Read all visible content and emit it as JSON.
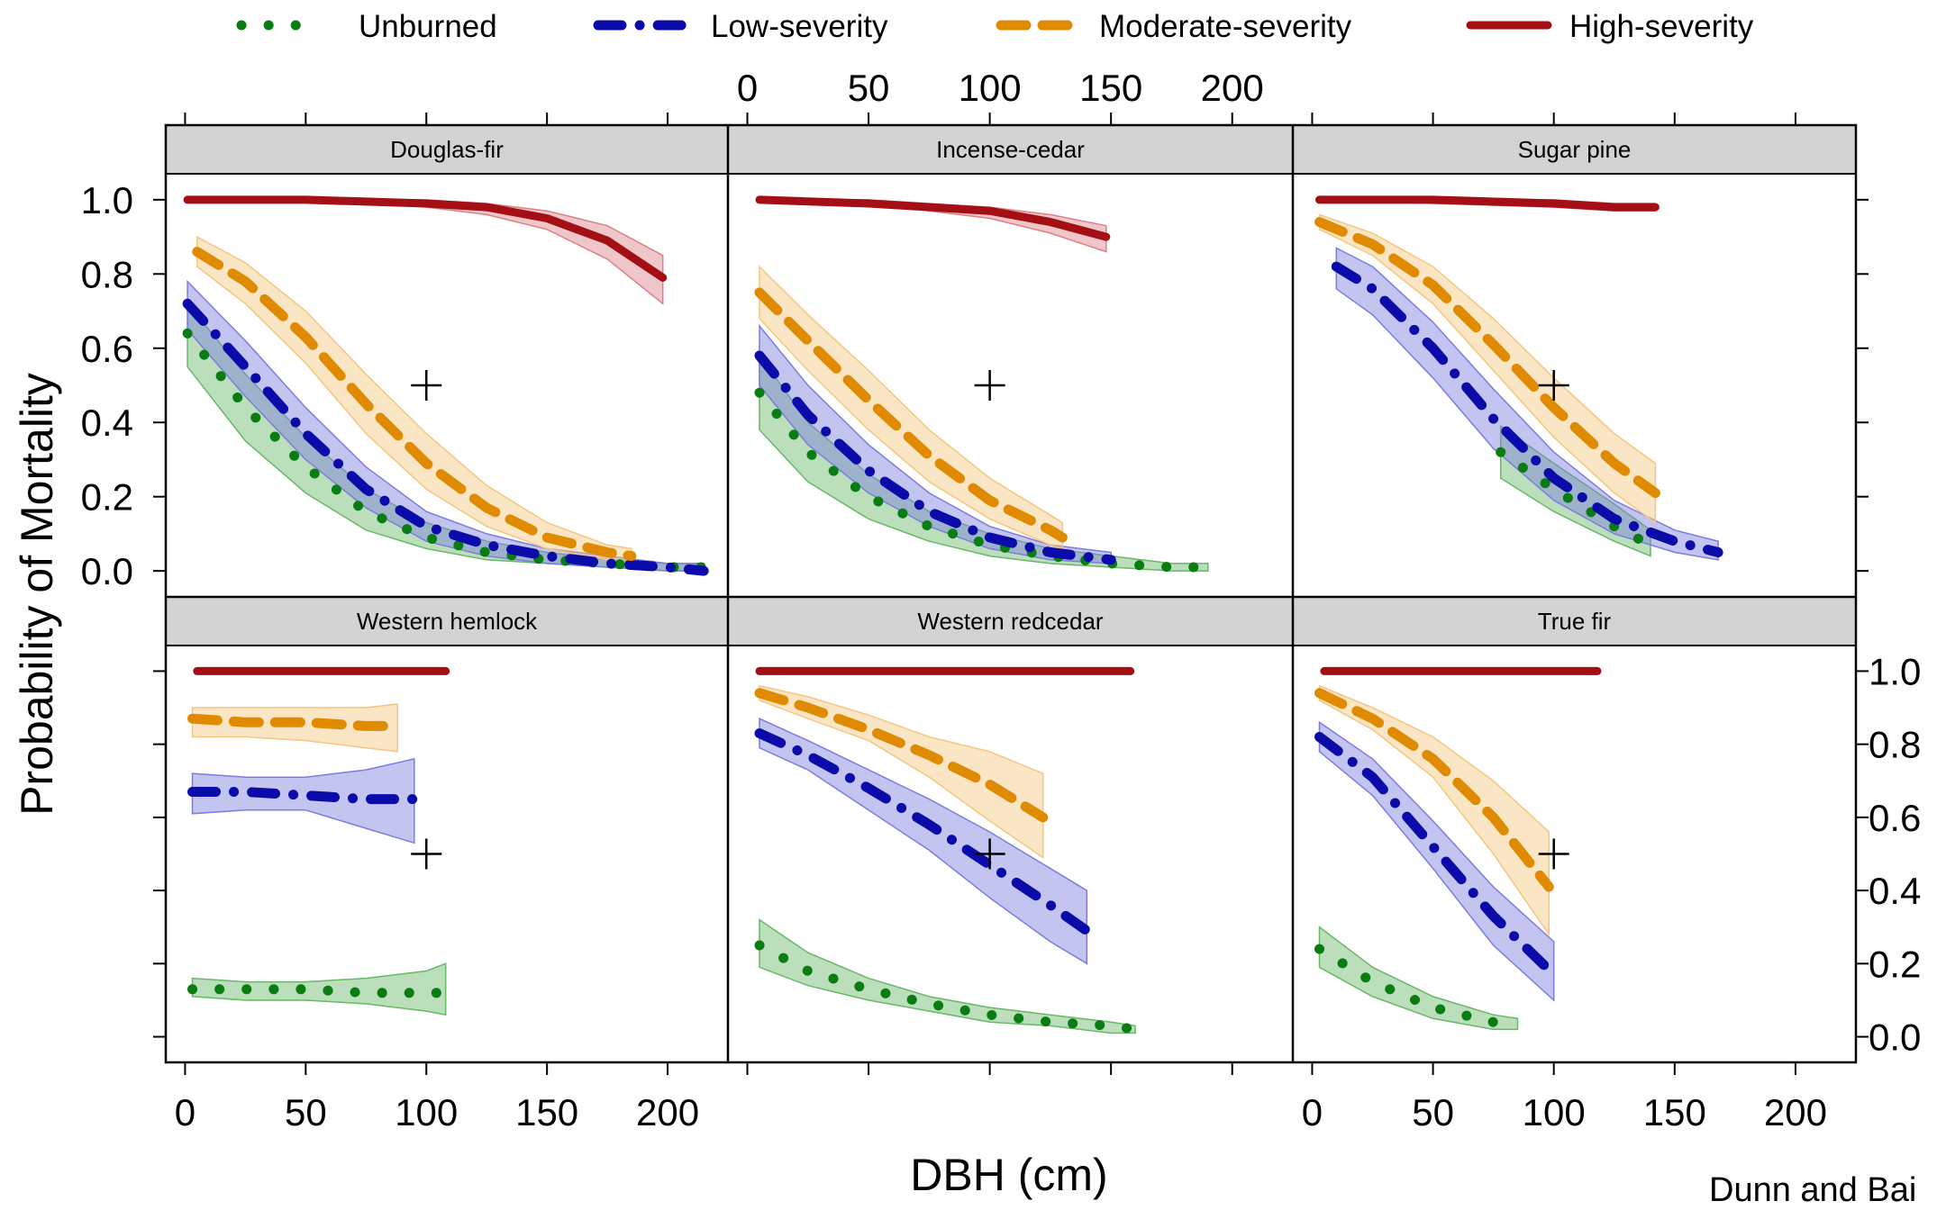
{
  "attribution": "Dunn and Bai",
  "chart_data": {
    "type": "line",
    "grid": false,
    "legend_position": "top",
    "x_label": "DBH (cm)",
    "y_label": "Probability of Mortality",
    "x_range": [
      -8,
      225
    ],
    "y_range": [
      -0.07,
      1.07
    ],
    "x_ticks": [
      0,
      50,
      100,
      150,
      200
    ],
    "x_tick_labels": [
      "0",
      "50",
      "100",
      "150",
      "200"
    ],
    "y_ticks": [
      0,
      0.2,
      0.4,
      0.6,
      0.8,
      1.0
    ],
    "y_tick_labels": [
      "0.0",
      "0.2",
      "0.4",
      "0.6",
      "0.8",
      "1.0"
    ],
    "reference_marker": {
      "x": 100,
      "y": 0.5,
      "symbol": "+"
    },
    "series_styles": [
      {
        "key": "unburned",
        "name": "Unburned",
        "color": "#0a7d12",
        "band_color": "#68b868",
        "style": "dotted"
      },
      {
        "key": "low",
        "name": "Low-severity",
        "color": "#0a0ba8",
        "band_color": "#7c7ce0",
        "style": "dash-dot"
      },
      {
        "key": "moderate",
        "name": "Moderate-severity",
        "color": "#e08a00",
        "band_color": "#f4c67e",
        "style": "dashed"
      },
      {
        "key": "high",
        "name": "High-severity",
        "color": "#a30f14",
        "band_color": "#dc8088",
        "style": "solid"
      }
    ],
    "panels": [
      {
        "title": "Douglas-fir",
        "series": [
          {
            "key": "unburned",
            "x": [
              1,
              25,
              50,
              75,
              100,
              125,
              150,
              175,
              200,
              215
            ],
            "y": [
              0.64,
              0.44,
              0.28,
              0.16,
              0.09,
              0.05,
              0.03,
              0.02,
              0.01,
              0.01
            ],
            "lower": [
              0.55,
              0.35,
              0.21,
              0.11,
              0.06,
              0.03,
              0.02,
              0.01,
              0.0,
              0.0
            ],
            "upper": [
              0.72,
              0.53,
              0.36,
              0.22,
              0.13,
              0.08,
              0.05,
              0.03,
              0.02,
              0.02
            ]
          },
          {
            "key": "low",
            "x": [
              1,
              25,
              50,
              75,
              100,
              125,
              150,
              175,
              200,
              215
            ],
            "y": [
              0.72,
              0.55,
              0.37,
              0.22,
              0.12,
              0.07,
              0.04,
              0.02,
              0.01,
              0.0
            ],
            "lower": [
              0.65,
              0.47,
              0.3,
              0.17,
              0.08,
              0.04,
              0.02,
              0.01,
              0.0,
              0.0
            ],
            "upper": [
              0.78,
              0.62,
              0.44,
              0.28,
              0.16,
              0.1,
              0.06,
              0.04,
              0.02,
              0.02
            ]
          },
          {
            "key": "moderate",
            "x": [
              5,
              25,
              50,
              75,
              100,
              125,
              150,
              175,
              185
            ],
            "y": [
              0.86,
              0.78,
              0.63,
              0.45,
              0.29,
              0.17,
              0.09,
              0.05,
              0.04
            ],
            "lower": [
              0.82,
              0.72,
              0.56,
              0.37,
              0.22,
              0.12,
              0.06,
              0.03,
              0.02
            ],
            "upper": [
              0.9,
              0.83,
              0.7,
              0.53,
              0.37,
              0.23,
              0.13,
              0.07,
              0.06
            ]
          },
          {
            "key": "high",
            "x": [
              1,
              50,
              100,
              125,
              150,
              175,
              198
            ],
            "y": [
              1.0,
              1.0,
              0.99,
              0.98,
              0.95,
              0.89,
              0.79
            ],
            "lower": [
              1.0,
              1.0,
              0.98,
              0.96,
              0.92,
              0.84,
              0.72
            ],
            "upper": [
              1.0,
              1.0,
              1.0,
              0.99,
              0.97,
              0.93,
              0.85
            ]
          }
        ]
      },
      {
        "title": "Incense-cedar",
        "series": [
          {
            "key": "unburned",
            "x": [
              5,
              25,
              50,
              75,
              100,
              125,
              150,
              175,
              190
            ],
            "y": [
              0.48,
              0.32,
              0.2,
              0.12,
              0.07,
              0.04,
              0.02,
              0.01,
              0.01
            ],
            "lower": [
              0.38,
              0.24,
              0.14,
              0.08,
              0.04,
              0.02,
              0.01,
              0.0,
              0.0
            ],
            "upper": [
              0.58,
              0.4,
              0.26,
              0.16,
              0.1,
              0.06,
              0.04,
              0.02,
              0.02
            ]
          },
          {
            "key": "low",
            "x": [
              5,
              25,
              50,
              75,
              100,
              125,
              150
            ],
            "y": [
              0.58,
              0.42,
              0.27,
              0.16,
              0.09,
              0.05,
              0.03
            ],
            "lower": [
              0.5,
              0.34,
              0.21,
              0.12,
              0.06,
              0.03,
              0.02
            ],
            "upper": [
              0.66,
              0.5,
              0.34,
              0.21,
              0.12,
              0.07,
              0.05
            ]
          },
          {
            "key": "moderate",
            "x": [
              5,
              25,
              50,
              75,
              100,
              125,
              130
            ],
            "y": [
              0.75,
              0.62,
              0.46,
              0.31,
              0.19,
              0.11,
              0.09
            ],
            "lower": [
              0.68,
              0.54,
              0.38,
              0.24,
              0.14,
              0.07,
              0.06
            ],
            "upper": [
              0.82,
              0.69,
              0.54,
              0.38,
              0.25,
              0.15,
              0.13
            ]
          },
          {
            "key": "high",
            "x": [
              5,
              50,
              100,
              125,
              148
            ],
            "y": [
              1.0,
              0.99,
              0.97,
              0.94,
              0.9
            ],
            "lower": [
              1.0,
              0.99,
              0.95,
              0.91,
              0.86
            ],
            "upper": [
              1.0,
              1.0,
              0.98,
              0.96,
              0.93
            ]
          }
        ]
      },
      {
        "title": "Sugar pine",
        "series": [
          {
            "key": "unburned",
            "x": [
              78,
              100,
              125,
              140
            ],
            "y": [
              0.32,
              0.22,
              0.12,
              0.07
            ],
            "lower": [
              0.25,
              0.16,
              0.08,
              0.04
            ],
            "upper": [
              0.39,
              0.29,
              0.18,
              0.11
            ]
          },
          {
            "key": "low",
            "x": [
              10,
              25,
              50,
              75,
              100,
              125,
              150,
              168
            ],
            "y": [
              0.82,
              0.76,
              0.6,
              0.41,
              0.25,
              0.14,
              0.08,
              0.05
            ],
            "lower": [
              0.76,
              0.69,
              0.52,
              0.33,
              0.19,
              0.1,
              0.05,
              0.03
            ],
            "upper": [
              0.87,
              0.82,
              0.67,
              0.49,
              0.32,
              0.19,
              0.11,
              0.08
            ]
          },
          {
            "key": "moderate",
            "x": [
              3,
              25,
              50,
              75,
              100,
              125,
              142
            ],
            "y": [
              0.94,
              0.88,
              0.77,
              0.61,
              0.44,
              0.29,
              0.21
            ],
            "lower": [
              0.92,
              0.85,
              0.72,
              0.54,
              0.36,
              0.21,
              0.13
            ],
            "upper": [
              0.96,
              0.91,
              0.82,
              0.68,
              0.52,
              0.37,
              0.29
            ]
          },
          {
            "key": "high",
            "x": [
              3,
              50,
              100,
              125,
              142
            ],
            "y": [
              1.0,
              1.0,
              0.99,
              0.98,
              0.98
            ],
            "lower": [
              1.0,
              0.99,
              0.98,
              0.97,
              0.97
            ],
            "upper": [
              1.0,
              1.0,
              1.0,
              0.99,
              0.99
            ]
          }
        ]
      },
      {
        "title": "Western hemlock",
        "series": [
          {
            "key": "unburned",
            "x": [
              3,
              25,
              50,
              75,
              100,
              108
            ],
            "y": [
              0.13,
              0.13,
              0.13,
              0.12,
              0.12,
              0.12
            ],
            "lower": [
              0.11,
              0.1,
              0.1,
              0.09,
              0.07,
              0.06
            ],
            "upper": [
              0.16,
              0.15,
              0.15,
              0.16,
              0.18,
              0.2
            ]
          },
          {
            "key": "low",
            "x": [
              3,
              25,
              50,
              75,
              95
            ],
            "y": [
              0.67,
              0.67,
              0.66,
              0.65,
              0.65
            ],
            "lower": [
              0.61,
              0.62,
              0.62,
              0.57,
              0.53
            ],
            "upper": [
              0.72,
              0.71,
              0.71,
              0.73,
              0.76
            ]
          },
          {
            "key": "moderate",
            "x": [
              3,
              25,
              50,
              75,
              88
            ],
            "y": [
              0.87,
              0.86,
              0.86,
              0.85,
              0.85
            ],
            "lower": [
              0.82,
              0.82,
              0.81,
              0.79,
              0.78
            ],
            "upper": [
              0.9,
              0.9,
              0.9,
              0.9,
              0.91
            ]
          },
          {
            "key": "high",
            "x": [
              5,
              50,
              108
            ],
            "y": [
              1.0,
              1.0,
              1.0
            ],
            "lower": [
              1.0,
              1.0,
              1.0
            ],
            "upper": [
              1.0,
              1.0,
              1.0
            ]
          }
        ]
      },
      {
        "title": "Western redcedar",
        "series": [
          {
            "key": "unburned",
            "x": [
              5,
              25,
              50,
              75,
              100,
              125,
              150,
              160
            ],
            "y": [
              0.25,
              0.18,
              0.13,
              0.09,
              0.06,
              0.04,
              0.03,
              0.02
            ],
            "lower": [
              0.19,
              0.14,
              0.1,
              0.07,
              0.04,
              0.03,
              0.01,
              0.01
            ],
            "upper": [
              0.32,
              0.23,
              0.16,
              0.11,
              0.08,
              0.06,
              0.04,
              0.03
            ]
          },
          {
            "key": "low",
            "x": [
              5,
              25,
              50,
              75,
              100,
              125,
              140
            ],
            "y": [
              0.83,
              0.77,
              0.68,
              0.58,
              0.47,
              0.36,
              0.29
            ],
            "lower": [
              0.79,
              0.73,
              0.62,
              0.51,
              0.38,
              0.26,
              0.2
            ],
            "upper": [
              0.87,
              0.81,
              0.73,
              0.65,
              0.56,
              0.46,
              0.4
            ]
          },
          {
            "key": "moderate",
            "x": [
              5,
              25,
              50,
              75,
              100,
              122
            ],
            "y": [
              0.94,
              0.9,
              0.84,
              0.77,
              0.69,
              0.6
            ],
            "lower": [
              0.92,
              0.87,
              0.81,
              0.71,
              0.59,
              0.49
            ],
            "upper": [
              0.96,
              0.93,
              0.88,
              0.82,
              0.78,
              0.72
            ]
          },
          {
            "key": "high",
            "x": [
              5,
              50,
              100,
              158
            ],
            "y": [
              1.0,
              1.0,
              1.0,
              1.0
            ],
            "lower": [
              1.0,
              1.0,
              1.0,
              1.0
            ],
            "upper": [
              1.0,
              1.0,
              1.0,
              1.0
            ]
          }
        ]
      },
      {
        "title": "True fir",
        "series": [
          {
            "key": "unburned",
            "x": [
              3,
              25,
              50,
              75,
              85
            ],
            "y": [
              0.24,
              0.15,
              0.08,
              0.04,
              0.03
            ],
            "lower": [
              0.19,
              0.11,
              0.05,
              0.02,
              0.02
            ],
            "upper": [
              0.3,
              0.19,
              0.11,
              0.06,
              0.05
            ]
          },
          {
            "key": "low",
            "x": [
              3,
              25,
              50,
              75,
              100
            ],
            "y": [
              0.82,
              0.71,
              0.52,
              0.33,
              0.17
            ],
            "lower": [
              0.78,
              0.66,
              0.46,
              0.25,
              0.1
            ],
            "upper": [
              0.86,
              0.76,
              0.59,
              0.41,
              0.26
            ]
          },
          {
            "key": "moderate",
            "x": [
              3,
              25,
              50,
              75,
              98
            ],
            "y": [
              0.94,
              0.87,
              0.76,
              0.6,
              0.41
            ],
            "lower": [
              0.92,
              0.84,
              0.71,
              0.5,
              0.28
            ],
            "upper": [
              0.96,
              0.9,
              0.82,
              0.7,
              0.56
            ]
          },
          {
            "key": "high",
            "x": [
              5,
              50,
              118
            ],
            "y": [
              1.0,
              1.0,
              1.0
            ],
            "lower": [
              1.0,
              1.0,
              1.0
            ],
            "upper": [
              1.0,
              1.0,
              1.0
            ]
          }
        ]
      }
    ]
  }
}
